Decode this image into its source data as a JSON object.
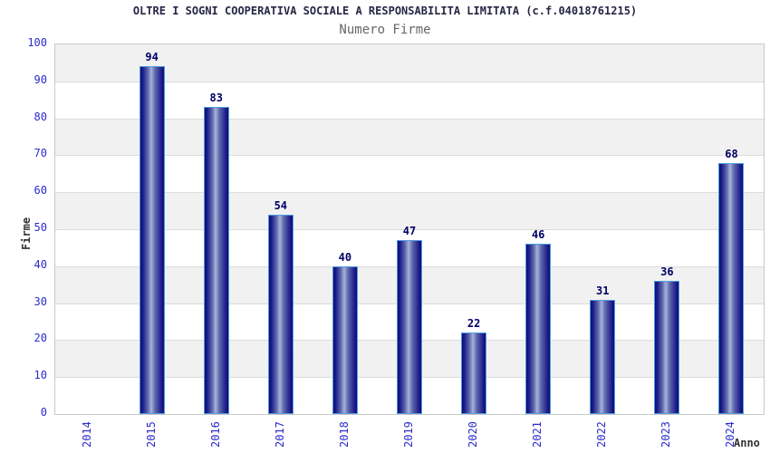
{
  "title": "OLTRE I SOGNI COOPERATIVA SOCIALE A RESPONSABILITA LIMITATA (c.f.04018761215)",
  "subtitle": "Numero Firme",
  "chart_data": {
    "type": "bar",
    "title": "Numero Firme",
    "categories": [
      "2014",
      "2015",
      "2016",
      "2017",
      "2018",
      "2019",
      "2020",
      "2021",
      "2022",
      "2023",
      "2024"
    ],
    "values": [
      null,
      94,
      83,
      54,
      40,
      47,
      22,
      46,
      31,
      36,
      68
    ],
    "xlabel": "Anno",
    "ylabel": "Firme",
    "ylim": [
      0,
      100
    ],
    "ytick_step": 10,
    "grid": true,
    "legend": "none",
    "colors": {
      "bar_edge": "#0e0e74",
      "bar_highlight": "#a9b2d8",
      "bar_border": "#4d9be0",
      "tick_label": "#2b2bcc",
      "value_label": "#000066",
      "axis_title": "#333333",
      "title": "#262645",
      "subtitle": "#666666",
      "stripe": "#f1f1f1",
      "gridline": "#dcdcdc",
      "plot_border": "#c9c9c9"
    }
  }
}
